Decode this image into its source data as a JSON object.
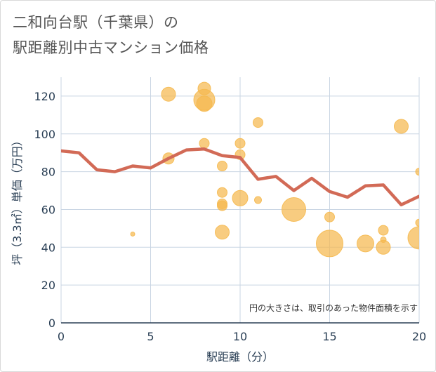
{
  "title_lines": [
    "二和向台駅（千葉県）の",
    "駅距離別中古マンション価格"
  ],
  "chart_data": {
    "type": "scatter",
    "xlabel": "駅距離（分）",
    "ylabel": "坪（3.3㎡）単価（万円）",
    "xlim": [
      0,
      20
    ],
    "ylim": [
      0,
      130
    ],
    "x_ticks": [
      "0",
      "5",
      "10",
      "15",
      "20"
    ],
    "y_ticks": [
      "0",
      "20",
      "40",
      "60",
      "80",
      "100",
      "120"
    ],
    "grid": true,
    "note": "円の大きさは、取引のあった物件面積を示す",
    "bubble_color": "#f5b94f",
    "line_color": "#d26a56",
    "line": {
      "x": [
        0,
        1,
        2,
        3,
        4,
        5,
        6,
        7,
        8,
        9,
        10,
        11,
        12,
        13,
        14,
        15,
        16,
        17,
        18,
        19,
        20
      ],
      "y": [
        91,
        90,
        81,
        80,
        83,
        82,
        87,
        91.5,
        92,
        88.5,
        87.5,
        76,
        77.5,
        70,
        76.5,
        69.5,
        66.5,
        72.5,
        73,
        62.5,
        67
      ]
    },
    "bubbles": [
      {
        "x": 4,
        "y": 47,
        "r": 3
      },
      {
        "x": 6,
        "y": 121,
        "r": 10
      },
      {
        "x": 6,
        "y": 87,
        "r": 8
      },
      {
        "x": 8,
        "y": 124,
        "r": 9
      },
      {
        "x": 8,
        "y": 118,
        "r": 15
      },
      {
        "x": 8,
        "y": 116,
        "r": 11
      },
      {
        "x": 8,
        "y": 95,
        "r": 7
      },
      {
        "x": 9,
        "y": 83,
        "r": 7
      },
      {
        "x": 9,
        "y": 69,
        "r": 7
      },
      {
        "x": 9,
        "y": 63,
        "r": 7
      },
      {
        "x": 9,
        "y": 62,
        "r": 7
      },
      {
        "x": 9,
        "y": 48,
        "r": 10
      },
      {
        "x": 10,
        "y": 95,
        "r": 7
      },
      {
        "x": 10,
        "y": 89,
        "r": 7
      },
      {
        "x": 10,
        "y": 66,
        "r": 11
      },
      {
        "x": 11,
        "y": 106,
        "r": 7
      },
      {
        "x": 11,
        "y": 65,
        "r": 5
      },
      {
        "x": 13,
        "y": 60,
        "r": 17
      },
      {
        "x": 15,
        "y": 56,
        "r": 7
      },
      {
        "x": 15,
        "y": 42,
        "r": 19
      },
      {
        "x": 17,
        "y": 42,
        "r": 12
      },
      {
        "x": 18,
        "y": 49,
        "r": 7
      },
      {
        "x": 18,
        "y": 44,
        "r": 4
      },
      {
        "x": 18,
        "y": 40,
        "r": 10
      },
      {
        "x": 19,
        "y": 104,
        "r": 10
      },
      {
        "x": 20,
        "y": 80,
        "r": 5
      },
      {
        "x": 20,
        "y": 53,
        "r": 5
      },
      {
        "x": 20,
        "y": 45,
        "r": 16
      }
    ]
  }
}
